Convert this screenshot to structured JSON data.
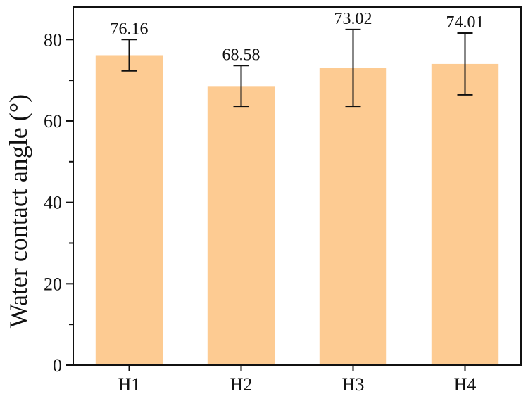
{
  "chart_data": {
    "type": "bar",
    "categories": [
      "H1",
      "H2",
      "H3",
      "H4"
    ],
    "values": [
      76.16,
      68.58,
      73.02,
      74.01
    ],
    "value_labels": [
      "76.16",
      "68.58",
      "73.02",
      "74.01"
    ],
    "error_bars": [
      {
        "low": 72.3,
        "high": 80.0
      },
      {
        "low": 63.6,
        "high": 73.6
      },
      {
        "low": 63.6,
        "high": 82.5
      },
      {
        "low": 66.4,
        "high": 81.6
      }
    ],
    "title": "",
    "xlabel": "",
    "ylabel": "Water contact angle (°)",
    "ylim": [
      0,
      88
    ],
    "y_ticks": [
      0,
      20,
      40,
      60,
      80
    ],
    "y_tick_labels": [
      "0",
      "20",
      "40",
      "60",
      "80"
    ],
    "grid": false,
    "bar_color": "#FDCB92",
    "axis_color": "#111111"
  }
}
